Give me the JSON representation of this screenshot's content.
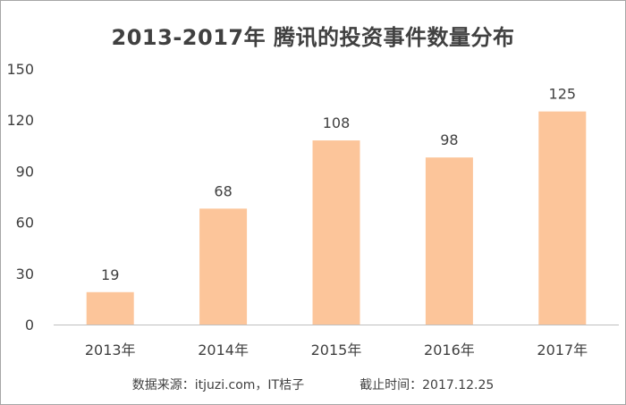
{
  "chart_data": {
    "type": "bar",
    "title": "2013-2017年 腾讯的投资事件数量分布",
    "categories": [
      "2013年",
      "2014年",
      "2015年",
      "2016年",
      "2017年"
    ],
    "values": [
      19,
      68,
      108,
      98,
      125
    ],
    "ylim": [
      0,
      150
    ],
    "yticks": [
      0,
      30,
      60,
      90,
      120,
      150
    ],
    "grid": false,
    "data_labels": true,
    "bar_color": "#fcc59a",
    "axis_color": "#bfbfbf"
  },
  "footer": {
    "source": "数据来源：itjuzi.com，IT桔子",
    "cutoff": "截止时间：2017.12.25"
  }
}
